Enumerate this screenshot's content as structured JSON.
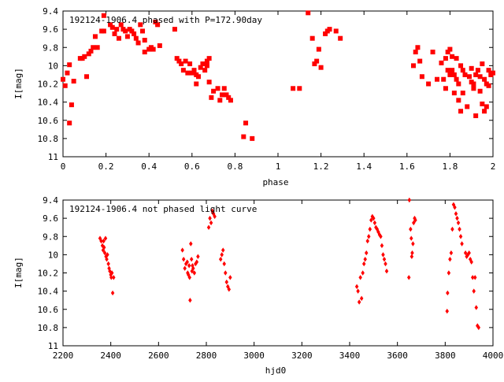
{
  "chart_data": [
    {
      "type": "scatter",
      "title": "192124-1906.4 phased with P=172.90day",
      "xlabel": "phase",
      "ylabel": "I[mag]",
      "xlim": [
        0,
        2
      ],
      "ylim": [
        9.4,
        11
      ],
      "y_inverted": true,
      "xticks": [
        "0",
        "0.2",
        "0.4",
        "0.6",
        "0.8",
        "1",
        "1.2",
        "1.4",
        "1.6",
        "1.8",
        "2"
      ],
      "yticks": [
        "9.4",
        "9.6",
        "9.8",
        "10",
        "10.2",
        "10.4",
        "10.6",
        "10.8",
        "11"
      ],
      "marker_color": "#ff0000",
      "series": [
        {
          "points": [
            [
              0.0,
              10.15
            ],
            [
              0.01,
              10.22
            ],
            [
              0.02,
              10.08
            ],
            [
              0.03,
              10.63
            ],
            [
              0.03,
              9.99
            ],
            [
              0.04,
              10.43
            ],
            [
              0.05,
              10.17
            ],
            [
              0.08,
              9.92
            ],
            [
              0.09,
              9.92
            ],
            [
              0.1,
              9.9
            ],
            [
              0.11,
              10.12
            ],
            [
              0.12,
              9.87
            ],
            [
              0.13,
              9.84
            ],
            [
              0.14,
              9.8
            ],
            [
              0.15,
              9.68
            ],
            [
              0.16,
              9.8
            ],
            [
              0.18,
              9.62
            ],
            [
              0.19,
              9.62
            ],
            [
              0.19,
              9.45
            ],
            [
              0.22,
              9.55
            ],
            [
              0.23,
              9.58
            ],
            [
              0.24,
              9.65
            ],
            [
              0.25,
              9.6
            ],
            [
              0.26,
              9.7
            ],
            [
              0.27,
              9.55
            ],
            [
              0.28,
              9.6
            ],
            [
              0.29,
              9.62
            ],
            [
              0.3,
              9.68
            ],
            [
              0.31,
              9.6
            ],
            [
              0.32,
              9.62
            ],
            [
              0.33,
              9.65
            ],
            [
              0.34,
              9.7
            ],
            [
              0.35,
              9.75
            ],
            [
              0.36,
              9.55
            ],
            [
              0.37,
              9.62
            ],
            [
              0.38,
              9.72
            ],
            [
              0.38,
              9.85
            ],
            [
              0.4,
              9.82
            ],
            [
              0.41,
              9.8
            ],
            [
              0.42,
              9.82
            ],
            [
              0.43,
              9.52
            ],
            [
              0.44,
              9.55
            ],
            [
              0.45,
              9.78
            ],
            [
              0.52,
              9.6
            ],
            [
              0.53,
              9.92
            ],
            [
              0.54,
              9.95
            ],
            [
              0.55,
              9.98
            ],
            [
              0.56,
              10.05
            ],
            [
              0.57,
              9.95
            ],
            [
              0.58,
              10.08
            ],
            [
              0.59,
              9.98
            ],
            [
              0.6,
              10.08
            ],
            [
              0.61,
              10.05
            ],
            [
              0.62,
              10.1
            ],
            [
              0.62,
              10.2
            ],
            [
              0.63,
              10.12
            ],
            [
              0.64,
              10.02
            ],
            [
              0.65,
              9.98
            ],
            [
              0.66,
              10.05
            ],
            [
              0.67,
              10.0
            ],
            [
              0.67,
              9.95
            ],
            [
              0.68,
              9.92
            ],
            [
              0.68,
              10.18
            ],
            [
              0.69,
              10.35
            ],
            [
              0.7,
              10.28
            ],
            [
              0.72,
              10.25
            ],
            [
              0.73,
              10.38
            ],
            [
              0.74,
              10.32
            ],
            [
              0.75,
              10.25
            ],
            [
              0.76,
              10.32
            ],
            [
              0.77,
              10.35
            ],
            [
              0.78,
              10.38
            ],
            [
              0.84,
              10.78
            ],
            [
              0.85,
              10.63
            ],
            [
              0.88,
              10.8
            ],
            [
              1.07,
              10.25
            ],
            [
              1.1,
              10.25
            ],
            [
              1.14,
              9.42
            ],
            [
              1.16,
              9.7
            ],
            [
              1.17,
              9.98
            ],
            [
              1.18,
              9.95
            ],
            [
              1.19,
              9.82
            ],
            [
              1.2,
              10.02
            ],
            [
              1.22,
              9.65
            ],
            [
              1.23,
              9.62
            ],
            [
              1.24,
              9.6
            ],
            [
              1.27,
              9.62
            ],
            [
              1.29,
              9.7
            ],
            [
              1.63,
              10.0
            ],
            [
              1.64,
              9.85
            ],
            [
              1.65,
              9.8
            ],
            [
              1.66,
              9.95
            ],
            [
              1.67,
              10.12
            ],
            [
              1.7,
              10.2
            ],
            [
              1.72,
              9.85
            ],
            [
              1.74,
              10.15
            ],
            [
              1.76,
              9.97
            ],
            [
              1.77,
              10.15
            ],
            [
              1.78,
              10.25
            ],
            [
              1.78,
              9.92
            ],
            [
              1.79,
              9.85
            ],
            [
              1.79,
              10.05
            ],
            [
              1.8,
              9.82
            ],
            [
              1.8,
              10.1
            ],
            [
              1.81,
              9.9
            ],
            [
              1.81,
              10.05
            ],
            [
              1.82,
              10.1
            ],
            [
              1.82,
              10.3
            ],
            [
              1.83,
              9.92
            ],
            [
              1.83,
              10.15
            ],
            [
              1.84,
              10.2
            ],
            [
              1.84,
              10.38
            ],
            [
              1.85,
              10.0
            ],
            [
              1.85,
              10.5
            ],
            [
              1.86,
              10.05
            ],
            [
              1.86,
              10.3
            ],
            [
              1.87,
              10.1
            ],
            [
              1.88,
              10.45
            ],
            [
              1.89,
              10.12
            ],
            [
              1.9,
              10.18
            ],
            [
              1.9,
              10.03
            ],
            [
              1.91,
              10.25
            ],
            [
              1.91,
              10.2
            ],
            [
              1.92,
              10.55
            ],
            [
              1.92,
              10.1
            ],
            [
              1.93,
              10.05
            ],
            [
              1.94,
              10.12
            ],
            [
              1.94,
              10.28
            ],
            [
              1.95,
              9.98
            ],
            [
              1.95,
              10.42
            ],
            [
              1.96,
              10.5
            ],
            [
              1.96,
              10.15
            ],
            [
              1.97,
              10.45
            ],
            [
              1.97,
              10.2
            ],
            [
              1.98,
              10.05
            ],
            [
              1.98,
              10.22
            ],
            [
              1.99,
              10.1
            ],
            [
              2.0,
              10.08
            ]
          ]
        }
      ]
    },
    {
      "type": "scatter",
      "title": "192124-1906.4 not phased light curve",
      "xlabel": "hjd0",
      "ylabel": "I[mag]",
      "xlim": [
        2200,
        4000
      ],
      "ylim": [
        9.4,
        11
      ],
      "y_inverted": true,
      "xticks": [
        "2200",
        "2400",
        "2600",
        "2800",
        "3000",
        "3200",
        "3400",
        "3600",
        "3800",
        "4000"
      ],
      "yticks": [
        "9.4",
        "9.6",
        "9.8",
        "10",
        "10.2",
        "10.4",
        "10.6",
        "10.8",
        "11"
      ],
      "marker_color": "#ff0000",
      "series": [
        {
          "points": [
            [
              2355,
              9.82
            ],
            [
              2360,
              9.85
            ],
            [
              2365,
              9.9
            ],
            [
              2368,
              9.95
            ],
            [
              2370,
              9.85
            ],
            [
              2372,
              9.92
            ],
            [
              2375,
              9.98
            ],
            [
              2378,
              9.82
            ],
            [
              2380,
              10.02
            ],
            [
              2383,
              10.05
            ],
            [
              2386,
              10.0
            ],
            [
              2390,
              10.1
            ],
            [
              2393,
              10.15
            ],
            [
              2396,
              10.18
            ],
            [
              2400,
              10.22
            ],
            [
              2402,
              10.25
            ],
            [
              2405,
              10.2
            ],
            [
              2408,
              10.42
            ],
            [
              2412,
              10.25
            ],
            [
              2700,
              9.95
            ],
            [
              2705,
              10.05
            ],
            [
              2710,
              10.15
            ],
            [
              2715,
              10.1
            ],
            [
              2720,
              10.08
            ],
            [
              2722,
              10.2
            ],
            [
              2725,
              10.22
            ],
            [
              2728,
              10.12
            ],
            [
              2730,
              10.25
            ],
            [
              2732,
              10.5
            ],
            [
              2735,
              9.88
            ],
            [
              2738,
              10.05
            ],
            [
              2740,
              10.18
            ],
            [
              2742,
              10.12
            ],
            [
              2745,
              10.15
            ],
            [
              2750,
              10.2
            ],
            [
              2755,
              10.1
            ],
            [
              2760,
              10.08
            ],
            [
              2765,
              10.02
            ],
            [
              2810,
              9.7
            ],
            [
              2815,
              9.6
            ],
            [
              2820,
              9.65
            ],
            [
              2825,
              9.52
            ],
            [
              2830,
              9.55
            ],
            [
              2835,
              9.58
            ],
            [
              2860,
              10.05
            ],
            [
              2865,
              10.0
            ],
            [
              2870,
              9.95
            ],
            [
              2875,
              10.1
            ],
            [
              2880,
              10.2
            ],
            [
              2885,
              10.3
            ],
            [
              2890,
              10.35
            ],
            [
              2895,
              10.38
            ],
            [
              2900,
              10.25
            ],
            [
              3430,
              10.35
            ],
            [
              3435,
              10.4
            ],
            [
              3440,
              10.52
            ],
            [
              3445,
              10.25
            ],
            [
              3450,
              10.48
            ],
            [
              3455,
              10.2
            ],
            [
              3460,
              10.1
            ],
            [
              3465,
              10.05
            ],
            [
              3470,
              9.98
            ],
            [
              3475,
              9.85
            ],
            [
              3480,
              9.8
            ],
            [
              3485,
              9.72
            ],
            [
              3490,
              9.62
            ],
            [
              3495,
              9.58
            ],
            [
              3500,
              9.6
            ],
            [
              3505,
              9.65
            ],
            [
              3510,
              9.7
            ],
            [
              3515,
              9.72
            ],
            [
              3520,
              9.75
            ],
            [
              3525,
              9.78
            ],
            [
              3530,
              9.8
            ],
            [
              3535,
              9.9
            ],
            [
              3540,
              10.0
            ],
            [
              3545,
              10.05
            ],
            [
              3550,
              10.1
            ],
            [
              3555,
              10.18
            ],
            [
              3648,
              10.25
            ],
            [
              3650,
              9.4
            ],
            [
              3655,
              9.72
            ],
            [
              3658,
              9.82
            ],
            [
              3660,
              10.02
            ],
            [
              3662,
              9.98
            ],
            [
              3665,
              9.88
            ],
            [
              3668,
              9.65
            ],
            [
              3672,
              9.6
            ],
            [
              3675,
              9.62
            ],
            [
              3808,
              10.62
            ],
            [
              3810,
              10.42
            ],
            [
              3815,
              10.2
            ],
            [
              3820,
              10.05
            ],
            [
              3825,
              9.98
            ],
            [
              3830,
              9.72
            ],
            [
              3835,
              9.45
            ],
            [
              3840,
              9.48
            ],
            [
              3845,
              9.55
            ],
            [
              3850,
              9.6
            ],
            [
              3855,
              9.65
            ],
            [
              3860,
              9.72
            ],
            [
              3865,
              9.8
            ],
            [
              3870,
              9.88
            ],
            [
              3885,
              9.98
            ],
            [
              3890,
              10.02
            ],
            [
              3895,
              10.0
            ],
            [
              3900,
              9.98
            ],
            [
              3905,
              10.05
            ],
            [
              3910,
              10.08
            ],
            [
              3915,
              10.25
            ],
            [
              3920,
              10.4
            ],
            [
              3925,
              10.25
            ],
            [
              3930,
              10.58
            ],
            [
              3935,
              10.78
            ],
            [
              3940,
              10.8
            ]
          ]
        }
      ]
    }
  ]
}
